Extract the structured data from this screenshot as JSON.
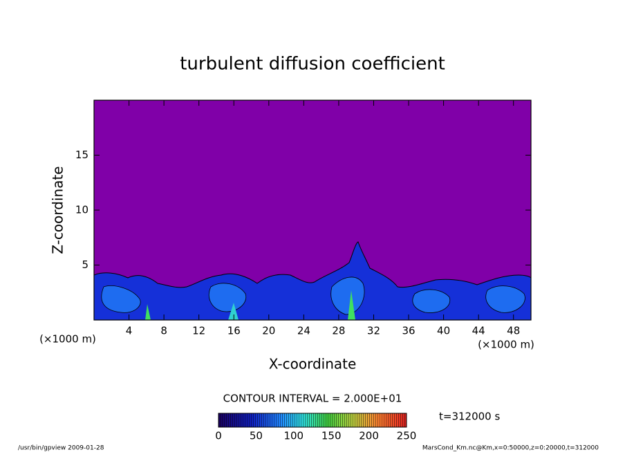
{
  "chart_data": {
    "type": "contour",
    "title": "turbulent diffusion coefficient",
    "x_label": "X-coordinate",
    "y_label": "Z-coordinate",
    "x_unit": "(×1000 m)",
    "y_unit": "(×1000 m)",
    "xlim": [
      0,
      50
    ],
    "ylim": [
      0,
      20
    ],
    "xticks": [
      4,
      8,
      12,
      16,
      20,
      24,
      28,
      32,
      36,
      40,
      44,
      48
    ],
    "yticks": [
      5,
      10,
      15
    ],
    "contour_interval": "CONTOUR INTERVAL = 2.000E+01",
    "colorbar": {
      "lim": [
        0,
        250
      ],
      "ticks": [
        0,
        50,
        100,
        150,
        200,
        250
      ]
    },
    "time_label": "t=312000 s"
  },
  "footer": {
    "left": "/usr/bin/gpview  2009-01-28",
    "right": "MarsCond_Km.nc@Km,x=0:50000,z=0:20000,t=312000"
  }
}
